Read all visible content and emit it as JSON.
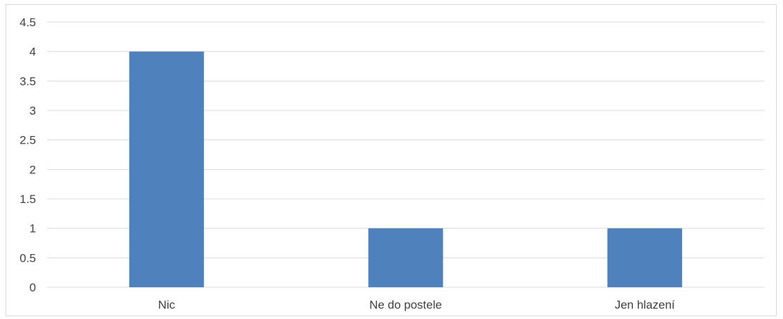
{
  "chart_data": {
    "type": "bar",
    "title": "",
    "xlabel": "",
    "ylabel": "",
    "categories": [
      "Nic",
      "Ne do postele",
      "Jen hlazení"
    ],
    "values": [
      4,
      1,
      1
    ],
    "ylim": [
      0,
      4.5
    ],
    "yticks": [
      "0",
      "0.5",
      "1",
      "1.5",
      "2",
      "2.5",
      "3",
      "3.5",
      "4",
      "4.5"
    ],
    "grid": true,
    "legend": "none",
    "bar_color": "#4f81bd",
    "grid_color": "#d9d9d9",
    "label_color": "#404040"
  }
}
